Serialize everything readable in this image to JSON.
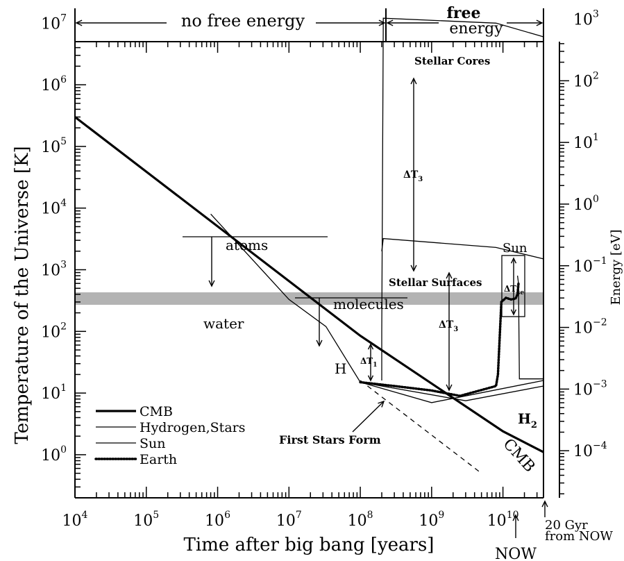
{
  "chart_data": {
    "type": "line",
    "title": "",
    "xlabel": "Time after big bang [years]",
    "ylabel": "Temperature of the Universe [K]",
    "y2label": "Energy [eV]",
    "x_scale": "log",
    "y_scale": "log",
    "xlim": [
      10000,
      37000000000
    ],
    "ylim": [
      0.2,
      5000000
    ],
    "x_ticks": [
      {
        "value": 10000,
        "base": "10",
        "exp": "4"
      },
      {
        "value": 100000,
        "base": "10",
        "exp": "5"
      },
      {
        "value": 1000000,
        "base": "10",
        "exp": "6"
      },
      {
        "value": 10000000,
        "base": "10",
        "exp": "7"
      },
      {
        "value": 100000000,
        "base": "10",
        "exp": "8"
      },
      {
        "value": 1000000000,
        "base": "10",
        "exp": "9"
      },
      {
        "value": 10000000000,
        "base": "10",
        "exp": "10"
      }
    ],
    "y_ticks": [
      {
        "value": 1,
        "base": "10",
        "exp": "0"
      },
      {
        "value": 10,
        "base": "10",
        "exp": "1"
      },
      {
        "value": 100,
        "base": "10",
        "exp": "2"
      },
      {
        "value": 1000,
        "base": "10",
        "exp": "3"
      },
      {
        "value": 10000,
        "base": "10",
        "exp": "4"
      },
      {
        "value": 100000,
        "base": "10",
        "exp": "5"
      },
      {
        "value": 1000000,
        "base": "10",
        "exp": "6"
      },
      {
        "value": 10000000,
        "base": "10",
        "exp": "7"
      }
    ],
    "y2_ticks": [
      {
        "value": 0.0001,
        "base": "10",
        "exp": "−4"
      },
      {
        "value": 0.001,
        "base": "10",
        "exp": "−3"
      },
      {
        "value": 0.01,
        "base": "10",
        "exp": "−2"
      },
      {
        "value": 0.1,
        "base": "10",
        "exp": "−1"
      },
      {
        "value": 1,
        "base": "10",
        "exp": "0"
      },
      {
        "value": 10,
        "base": "10",
        "exp": "1"
      },
      {
        "value": 100,
        "base": "10",
        "exp": "2"
      },
      {
        "value": 1000,
        "base": "10",
        "exp": "3"
      }
    ],
    "series": [
      {
        "name": "CMB",
        "style": "thick",
        "x": [
          10000,
          100000000,
          10000000000,
          37000000000
        ],
        "y": [
          300000,
          85,
          2.4,
          1.1
        ]
      },
      {
        "name": "Hydrogen,Stars",
        "style": "thin",
        "x": [
          800000,
          10000000,
          33000000,
          100000000,
          1000000000,
          3000000000,
          37000000000
        ],
        "y": [
          8000,
          330,
          120,
          15,
          7,
          9,
          16
        ]
      },
      {
        "name": "Sun",
        "style": "thin",
        "x": [
          100000000,
          200000000,
          3000000000,
          37000000000
        ],
        "y": [
          15,
          13,
          7.5,
          13
        ]
      },
      {
        "name": "Earth",
        "style": "dotted",
        "x": [
          100000000,
          300000000,
          1000000000,
          2500000000,
          8000000000,
          8500000000,
          9500000000,
          11000000000,
          13000000000,
          15000000000,
          16000000000,
          16500000000
        ],
        "y": [
          15,
          13,
          11,
          9,
          13,
          20,
          300,
          350,
          330,
          340,
          400,
          600
        ]
      },
      {
        "name": "",
        "style": "dashed",
        "x": [
          100000000,
          5000000000
        ],
        "y": [
          16,
          0.5
        ]
      },
      {
        "name": "",
        "style": "thin",
        "x": [
          200000000,
          200000000,
          210000000,
          8000000000,
          37000000000
        ],
        "y": [
          16,
          100,
          12000000,
          10000000,
          6000000
        ]
      },
      {
        "name": "",
        "style": "thin",
        "x": [
          200000000,
          210000000,
          8000000000,
          37000000000
        ],
        "y": [
          2000,
          3200,
          2300,
          1500
        ]
      },
      {
        "name": "",
        "style": "thin",
        "x": [
          16000000000,
          16500000000,
          17000000000,
          18000000000,
          37000000000
        ],
        "y": [
          800,
          600,
          17,
          17,
          17
        ]
      }
    ],
    "annotations": [
      "no free energy",
      "free",
      "energy",
      "Stellar Cores",
      "ΔT",
      "3",
      "Stellar Surfaces",
      "ΔT",
      "3",
      "Sun",
      "ΔT",
      "se",
      "atoms",
      "molecules",
      "water",
      "H",
      "ΔT",
      "1",
      "First Stars Form",
      "H",
      "2",
      "CMB",
      "NOW",
      "20 Gyr",
      "from NOW"
    ],
    "legend": {
      "placement": "bottom-left",
      "entries": [
        "CMB",
        "Hydrogen,Stars",
        "Sun",
        "Earth"
      ]
    },
    "shaded_band": {
      "label": "water",
      "y": [
        270,
        430
      ],
      "color": "#b3b3b3"
    }
  }
}
